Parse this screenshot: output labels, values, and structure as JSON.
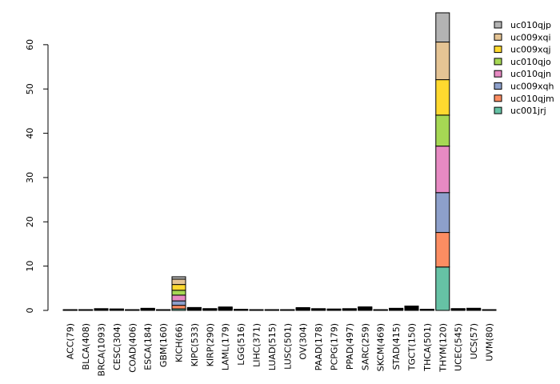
{
  "chart_data": {
    "type": "bar",
    "stacked": true,
    "categories": [
      "ACC(79)",
      "BLCA(408)",
      "BRCA(1093)",
      "CESC(304)",
      "COAD(406)",
      "ESCA(184)",
      "GBM(160)",
      "KICH(66)",
      "KIPC(533)",
      "KIRP(290)",
      "LAML(179)",
      "LGG(516)",
      "LIHC(371)",
      "LUAD(515)",
      "LUSC(501)",
      "OV(304)",
      "PAAD(178)",
      "PCPG(179)",
      "PPAD(497)",
      "SARC(259)",
      "SKCM(469)",
      "STAD(415)",
      "TGCT(150)",
      "THCA(501)",
      "THYM(120)",
      "UCEC(545)",
      "UCS(57)",
      "UVM(80)"
    ],
    "series": [
      {
        "name": "uc001jrj",
        "color": "#66c2a5",
        "values": [
          0.02,
          0.03,
          0.05,
          0.05,
          0.02,
          0.06,
          0.02,
          0.35,
          0.1,
          0.06,
          0.08,
          0.03,
          0.02,
          0.03,
          0.02,
          0.07,
          0.05,
          0.04,
          0.05,
          0.1,
          0.02,
          0.06,
          0.15,
          0.04,
          9.8,
          0.06,
          0.07,
          0.02
        ]
      },
      {
        "name": "uc010qjm",
        "color": "#fc8d62",
        "values": [
          0.02,
          0.02,
          0.05,
          0.04,
          0.02,
          0.06,
          0.02,
          0.8,
          0.08,
          0.05,
          0.1,
          0.03,
          0.02,
          0.02,
          0.02,
          0.08,
          0.05,
          0.04,
          0.05,
          0.1,
          0.02,
          0.06,
          0.12,
          0.03,
          7.8,
          0.05,
          0.06,
          0.02
        ]
      },
      {
        "name": "uc009xqh",
        "color": "#8da0cb",
        "values": [
          0.02,
          0.02,
          0.05,
          0.04,
          0.02,
          0.06,
          0.02,
          1.0,
          0.08,
          0.05,
          0.1,
          0.03,
          0.02,
          0.02,
          0.02,
          0.08,
          0.05,
          0.04,
          0.05,
          0.1,
          0.02,
          0.06,
          0.12,
          0.03,
          9.0,
          0.05,
          0.06,
          0.02
        ]
      },
      {
        "name": "uc010qjn",
        "color": "#e78ac3",
        "values": [
          0.02,
          0.02,
          0.05,
          0.04,
          0.02,
          0.06,
          0.02,
          1.3,
          0.08,
          0.05,
          0.1,
          0.03,
          0.02,
          0.02,
          0.02,
          0.08,
          0.05,
          0.04,
          0.05,
          0.1,
          0.02,
          0.06,
          0.12,
          0.03,
          10.5,
          0.05,
          0.06,
          0.02
        ]
      },
      {
        "name": "uc010qjo",
        "color": "#a6d854",
        "values": [
          0.02,
          0.02,
          0.05,
          0.04,
          0.02,
          0.06,
          0.02,
          1.1,
          0.08,
          0.05,
          0.1,
          0.03,
          0.02,
          0.02,
          0.02,
          0.08,
          0.05,
          0.04,
          0.05,
          0.1,
          0.02,
          0.06,
          0.12,
          0.03,
          7.0,
          0.05,
          0.06,
          0.02
        ]
      },
      {
        "name": "uc009xqj",
        "color": "#ffd92f",
        "values": [
          0.02,
          0.02,
          0.05,
          0.04,
          0.02,
          0.06,
          0.02,
          1.3,
          0.08,
          0.05,
          0.1,
          0.03,
          0.02,
          0.02,
          0.02,
          0.08,
          0.05,
          0.04,
          0.05,
          0.1,
          0.02,
          0.06,
          0.12,
          0.03,
          8.0,
          0.05,
          0.06,
          0.02
        ]
      },
      {
        "name": "uc009xqi",
        "color": "#e5c494",
        "values": [
          0.02,
          0.02,
          0.05,
          0.04,
          0.02,
          0.06,
          0.02,
          1.2,
          0.08,
          0.05,
          0.1,
          0.03,
          0.02,
          0.02,
          0.02,
          0.08,
          0.05,
          0.04,
          0.05,
          0.1,
          0.02,
          0.06,
          0.12,
          0.03,
          8.5,
          0.05,
          0.06,
          0.02
        ]
      },
      {
        "name": "uc010qjp",
        "color": "#b3b3b3",
        "values": [
          0.02,
          0.02,
          0.05,
          0.04,
          0.02,
          0.06,
          0.02,
          0.55,
          0.08,
          0.05,
          0.1,
          0.03,
          0.02,
          0.02,
          0.02,
          0.08,
          0.05,
          0.04,
          0.05,
          0.1,
          0.02,
          0.06,
          0.12,
          0.03,
          6.6,
          0.05,
          0.06,
          0.02
        ]
      }
    ],
    "ylim": [
      0,
      67.2
    ],
    "yticks": [
      0,
      10,
      20,
      30,
      40,
      50,
      60
    ],
    "title": "",
    "xlabel": "",
    "ylabel": "",
    "grid": false,
    "legend_position": "top-right",
    "legend_order": [
      "uc010qjp",
      "uc009xqi",
      "uc009xqj",
      "uc010qjo",
      "uc010qjn",
      "uc009xqh",
      "uc010qjm",
      "uc001jrj"
    ]
  }
}
